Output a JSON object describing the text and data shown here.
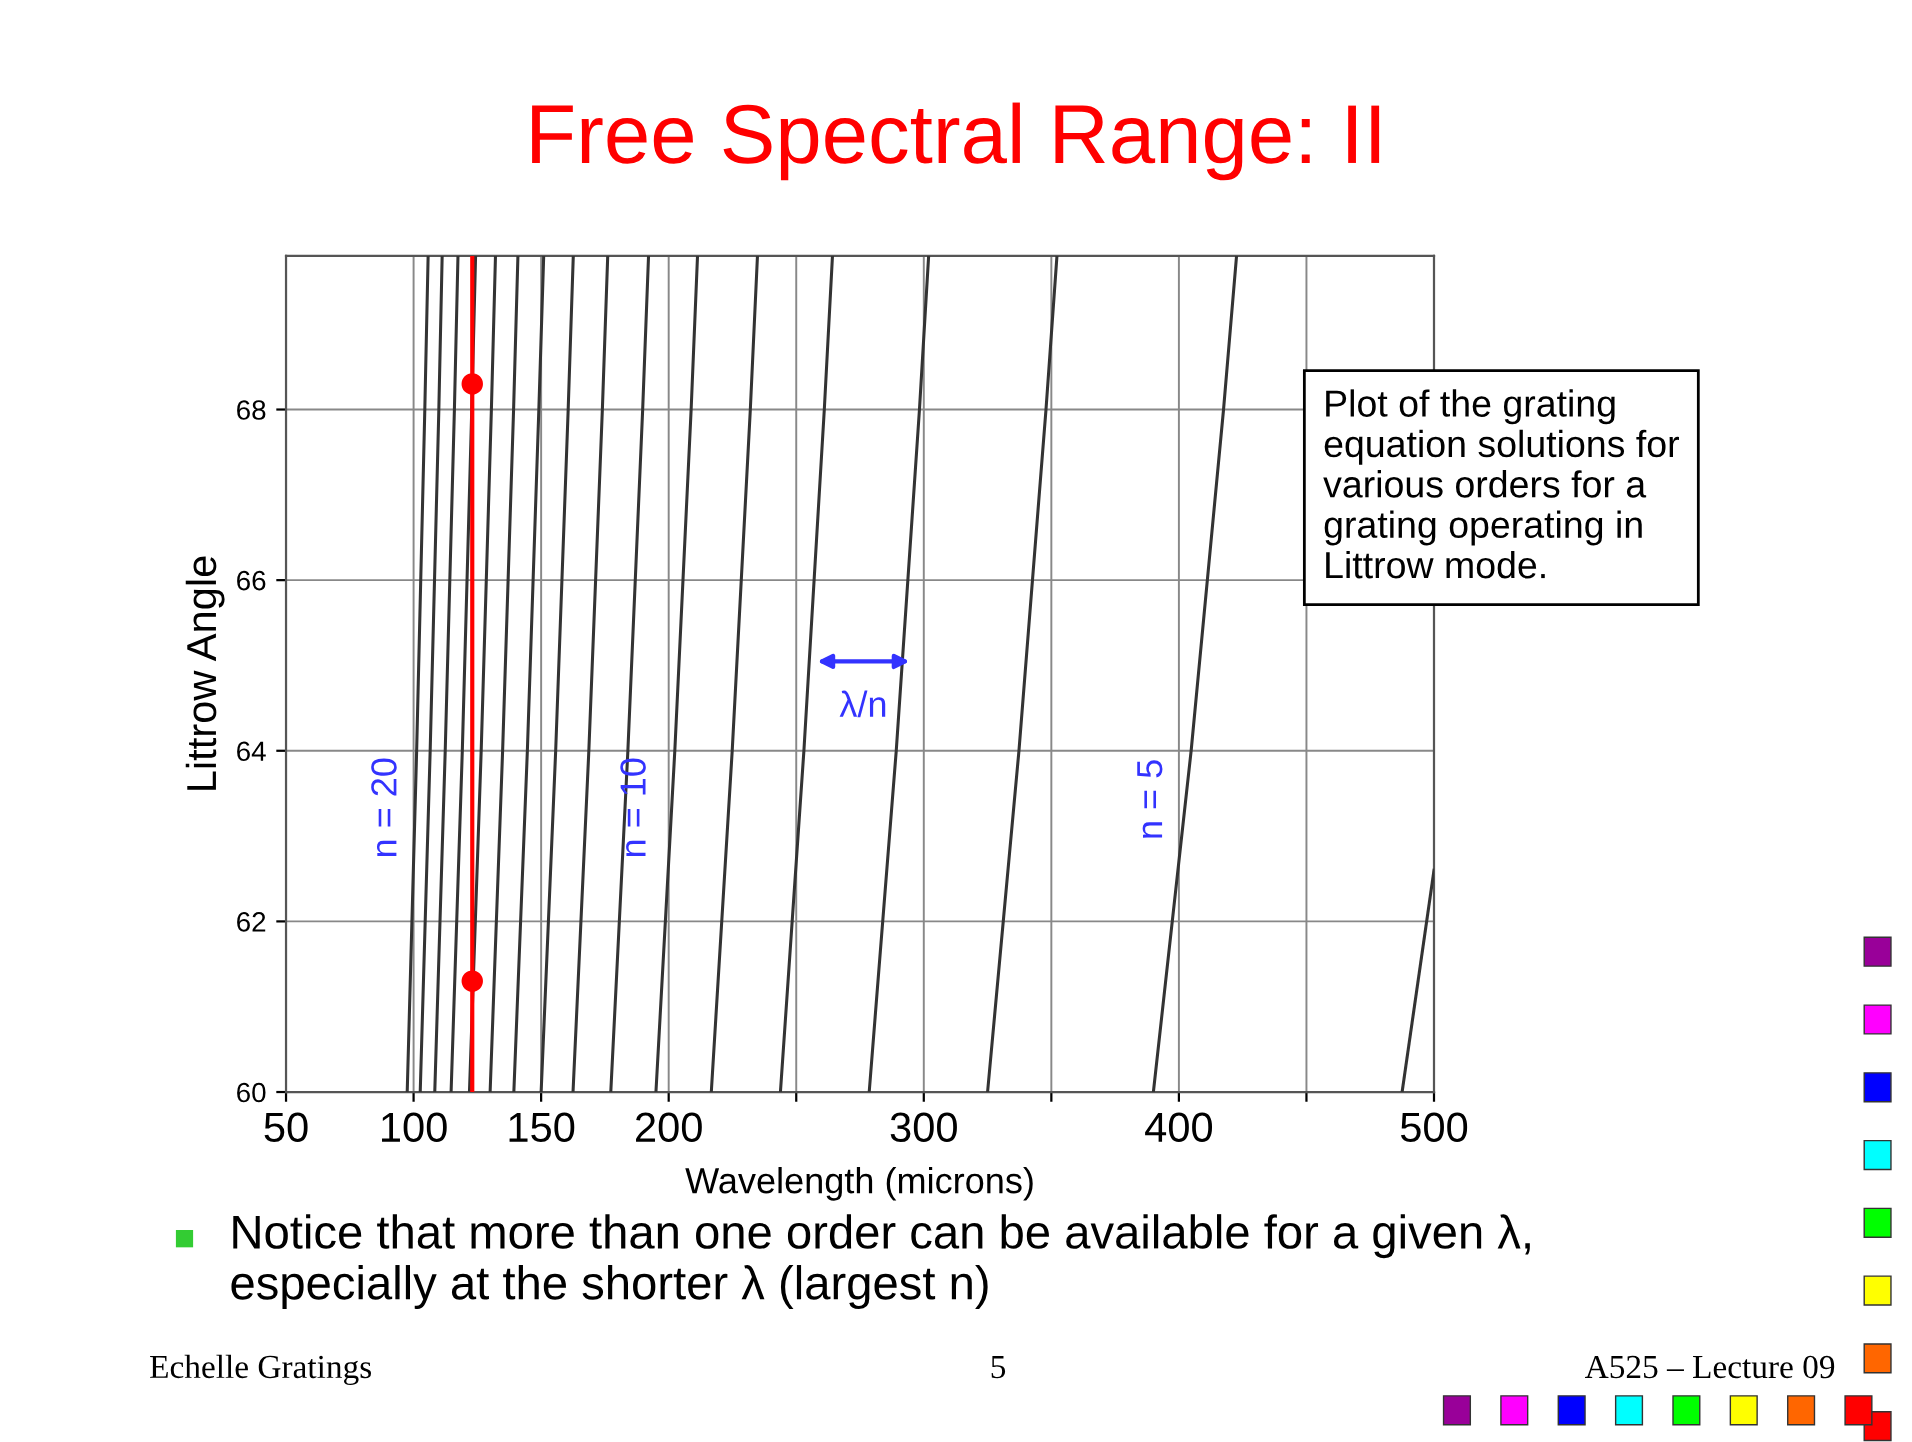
{
  "chart_data": {
    "type": "line",
    "title": "Free Spectral Range: II",
    "xlabel": "Wavelength (microns)",
    "ylabel": "Littrow Angle",
    "xlim": [
      50,
      500
    ],
    "ylim": [
      60,
      69.8
    ],
    "xticks": [
      50,
      100,
      150,
      200,
      {
        "value": 250,
        "label": null
      },
      300,
      {
        "value": 350,
        "label": null
      },
      400,
      {
        "value": 450,
        "label": null
      },
      500
    ],
    "yticks": [
      60,
      62,
      64,
      66,
      68
    ],
    "grid": true,
    "legend": false,
    "marker": "none",
    "line_style": "solid",
    "series": [
      {
        "color": "#333333",
        "x": [
          97.5,
          101.2,
          104.4,
          105.7
        ],
        "values": [
          60,
          64,
          68,
          69.8
        ]
      },
      {
        "color": "#333333",
        "x": [
          102.6,
          106.5,
          109.9,
          111.2
        ],
        "values": [
          60,
          64,
          68,
          69.8
        ]
      },
      {
        "color": "#333333",
        "x": [
          108.3,
          112.4,
          116.0,
          117.4
        ],
        "values": [
          60,
          64,
          68,
          69.8
        ]
      },
      {
        "color": "#333333",
        "x": [
          114.7,
          119.1,
          122.8,
          124.3
        ],
        "values": [
          60,
          64,
          68,
          69.8
        ]
      },
      {
        "color": "#333333",
        "x": [
          121.9,
          126.5,
          130.5,
          132.1
        ],
        "values": [
          60,
          64,
          68,
          69.8
        ]
      },
      {
        "color": "#333333",
        "x": [
          130,
          134.9,
          139.2,
          140.9
        ],
        "values": [
          60,
          64,
          68,
          69.8
        ]
      },
      {
        "color": "#333333",
        "x": [
          139.3,
          144.6,
          149.1,
          151.0
        ],
        "values": [
          60,
          64,
          68,
          69.8
        ]
      },
      {
        "color": "#333333",
        "x": [
          150,
          155.7,
          160.6,
          162.6
        ],
        "values": [
          60,
          64,
          68,
          69.8
        ]
      },
      {
        "color": "#333333",
        "x": [
          162.5,
          168.7,
          174.0,
          176.1
        ],
        "values": [
          60,
          64,
          68,
          69.8
        ]
      },
      {
        "color": "#333333",
        "x": [
          177.3,
          184.0,
          189.8,
          192.1
        ],
        "values": [
          60,
          64,
          68,
          69.8
        ]
      },
      {
        "color": "#333333",
        "x": [
          195,
          202.4,
          208.8,
          211.3
        ],
        "values": [
          60,
          64,
          68,
          69.8
        ]
      },
      {
        "color": "#333333",
        "x": [
          216.7,
          224.9,
          232.0,
          234.8
        ],
        "values": [
          60,
          64,
          68,
          69.8
        ]
      },
      {
        "color": "#333333",
        "x": [
          243.8,
          253.0,
          261.0,
          264.2
        ],
        "values": [
          60,
          64,
          68,
          69.8
        ]
      },
      {
        "color": "#333333",
        "x": [
          278.6,
          289.2,
          298.3,
          301.9
        ],
        "values": [
          60,
          64,
          68,
          69.8
        ]
      },
      {
        "color": "#333333",
        "x": [
          325,
          337.3,
          347.9,
          352.2
        ],
        "values": [
          60,
          64,
          68,
          69.8
        ]
      },
      {
        "color": "#333333",
        "x": [
          390,
          404.8,
          417.5,
          422.6
        ],
        "values": [
          60,
          64,
          68,
          69.8
        ]
      },
      {
        "color": "#333333",
        "x": [
          487.5,
          500
        ],
        "values": [
          60,
          62.6
        ]
      },
      {
        "type": "scatter",
        "marker": "circle",
        "color": "#ff0000",
        "x": [
          123,
          123
        ],
        "values": [
          68.3,
          61.3
        ]
      }
    ],
    "ref_lines": [
      {
        "axis": "x",
        "value": 123,
        "label": null,
        "color": "#ff0000",
        "line_style": "solid"
      }
    ],
    "annotations": [
      "n = 20",
      "n = 10",
      "n = 5",
      "λ/n",
      "Plot of the grating equation solutions for various orders for a grating operating in Littrow mode.",
      "Notice that more than one order can be available for a given λ, especially at the shorter λ (largest n)",
      "Echelle Gratings",
      "5",
      "A525 – Lecture 09"
    ]
  }
}
